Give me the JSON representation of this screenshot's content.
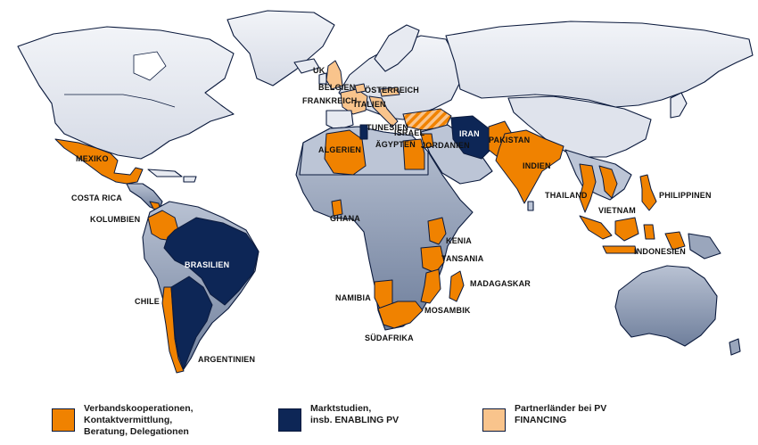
{
  "colors": {
    "orange": "#f08200",
    "navy": "#0d2656",
    "peach": "#f9c48c",
    "northern_land": "#e7eaf1",
    "southern_land": "#9aa6bc",
    "border": "#0b1a3d"
  },
  "labels": {
    "uk": "UK",
    "belgien": "BELGIEN",
    "oesterreich": "ÖSTERREICH",
    "frankreich": "FRANKREICH",
    "italien": "ITALIEN",
    "tunesien": "TUNESIEN",
    "israel": "ISRAEL",
    "aegypten": "ÄGYPTEN",
    "jordanien": "JORDANIEN",
    "iran": "IRAN",
    "pakistan": "PAKISTAN",
    "indien": "INDIEN",
    "mexiko": "MEXIKO",
    "costa_rica": "COSTA RICA",
    "kolumbien": "KOLUMBIEN",
    "brasilien": "BRASILIEN",
    "chile": "CHILE",
    "argentinien": "ARGENTINIEN",
    "algerien": "ALGERIEN",
    "ghana": "GHANA",
    "kenia": "KENIA",
    "tansania": "TANSANIA",
    "madagaskar": "MADAGASKAR",
    "namibia": "NAMIBIA",
    "mosambik": "MOSAMBIK",
    "suedafrika": "SÜDAFRIKA",
    "thailand": "THAILAND",
    "vietnam": "VIETNAM",
    "philippinen": "PHILIPPINEN",
    "indonesien": "INDONESIEN"
  },
  "legend": [
    {
      "color": "#f08200",
      "lines": [
        "Verbandskooperationen,",
        "Kontaktvermittlung,",
        "Beratung, Delegationen"
      ]
    },
    {
      "color": "#0d2656",
      "lines": [
        "Marktstudien,",
        "insb. ENABLING PV"
      ]
    },
    {
      "color": "#f9c48c",
      "lines": [
        "Partnerländer bei PV",
        "FINANCING"
      ]
    }
  ]
}
